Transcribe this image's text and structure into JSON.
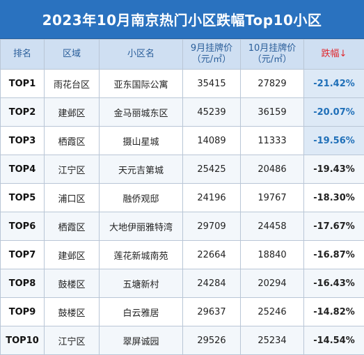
{
  "title": "2023年10月南京热门小区跌幅Top10小区",
  "columns": {
    "rank": "排名",
    "district": "区域",
    "estate": "小区名",
    "sep_price_line1": "9月挂牌价",
    "sep_price_line2": "（元/㎡）",
    "oct_price_line1": "10月挂牌价",
    "oct_price_line2": "（元/㎡）",
    "drop": "跌幅↓"
  },
  "highlight_color": "#1f6fb8",
  "rows": [
    {
      "rank": "TOP1",
      "district": "雨花台区",
      "estate": "亚东国际公寓",
      "sep": "35415",
      "oct": "27829",
      "drop": "-21.42%"
    },
    {
      "rank": "TOP2",
      "district": "建邺区",
      "estate": "金马丽城东区",
      "sep": "45239",
      "oct": "36159",
      "drop": "-20.07%"
    },
    {
      "rank": "TOP3",
      "district": "栖霞区",
      "estate": "摄山星城",
      "sep": "14089",
      "oct": "11333",
      "drop": "-19.56%"
    },
    {
      "rank": "TOP4",
      "district": "江宁区",
      "estate": "天元吉第城",
      "sep": "25425",
      "oct": "20486",
      "drop": "-19.43%"
    },
    {
      "rank": "TOP5",
      "district": "浦口区",
      "estate": "融侨观邸",
      "sep": "24196",
      "oct": "19767",
      "drop": "-18.30%"
    },
    {
      "rank": "TOP6",
      "district": "栖霞区",
      "estate": "大地伊丽雅特湾",
      "sep": "29709",
      "oct": "24458",
      "drop": "-17.67%"
    },
    {
      "rank": "TOP7",
      "district": "建邺区",
      "estate": "莲花新城南苑",
      "sep": "22664",
      "oct": "18840",
      "drop": "-16.87%"
    },
    {
      "rank": "TOP8",
      "district": "鼓楼区",
      "estate": "五塘新村",
      "sep": "24284",
      "oct": "20294",
      "drop": "-16.43%"
    },
    {
      "rank": "TOP9",
      "district": "鼓楼区",
      "estate": "白云雅居",
      "sep": "29637",
      "oct": "25246",
      "drop": "-14.82%"
    },
    {
      "rank": "TOP10",
      "district": "江宁区",
      "estate": "翠屏诚园",
      "sep": "29526",
      "oct": "25234",
      "drop": "-14.54%"
    }
  ]
}
